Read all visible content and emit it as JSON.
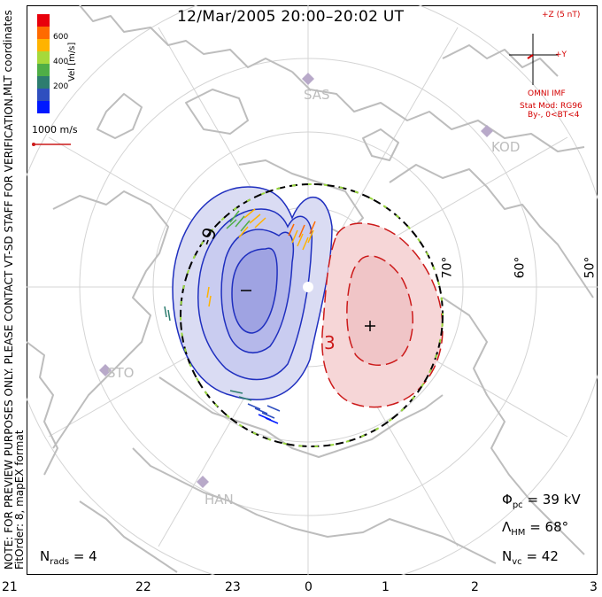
{
  "title": "12/Mar/2005 20:00–20:02 UT",
  "coordinates_label": "MLT coordinates",
  "colorbar": {
    "label": "Vel [m/s]",
    "ticks": [
      "600",
      "400",
      "200"
    ],
    "colors": [
      "#e8000b",
      "#ff6a00",
      "#ffb300",
      "#a6d93a",
      "#4fae46",
      "#2d7d6f",
      "#2f4fbf",
      "#0019ff"
    ]
  },
  "reference_vector": "1000 m/s",
  "imf": {
    "z_label": "+Z (5 nT)",
    "y_label": "+Y",
    "source": "OMNI IMF",
    "model": "Stat Mod: RG96",
    "condition": "By-, 0<BT<4"
  },
  "stations": [
    "SAS",
    "KOD",
    "STO",
    "HAN"
  ],
  "lat_labels": [
    "70°",
    "60°",
    "50°"
  ],
  "mlt_ticks": [
    "21",
    "22",
    "23",
    "0",
    "1",
    "2",
    "3"
  ],
  "note": "NOTE: FOR PREVIEW PURPOSES ONLY. PLEASE CONTACT VT-SD STAFF FOR VERIFICATION.",
  "fit_order": "FitOrder: 8, mapEX format",
  "contour_labels": {
    "neg": "-9",
    "pos": "3",
    "neg_marker": "−",
    "pos_marker": "+"
  },
  "stats": {
    "phi_label": "Φ",
    "phi_sub": "pc",
    "phi_value": "= 39 kV",
    "lambda_label": "Λ",
    "lambda_sub": "HM",
    "lambda_value": "= 68°",
    "nvc_label": "N",
    "nvc_sub": "vc",
    "nvc_value": "= 42",
    "nrads_label": "N",
    "nrads_sub": "rads",
    "nrads_value": "= 4"
  },
  "colors": {
    "negative_contour": "#1f2fbf",
    "positive_contour": "#cc1a1a",
    "negative_fill": "#c9ccf0",
    "positive_fill": "#f5cfd0",
    "grid": "#cfcfcf",
    "coastline": "#bdbdbd",
    "imf": "#d40000"
  }
}
